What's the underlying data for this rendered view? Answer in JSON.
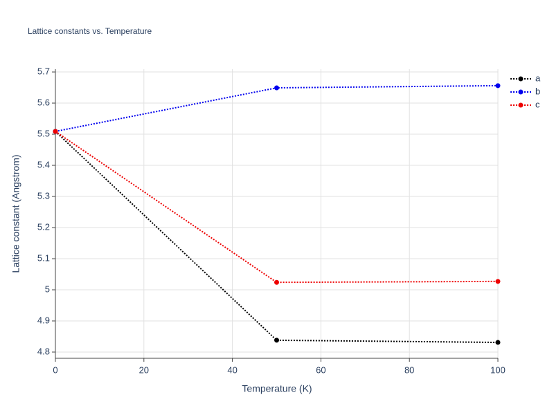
{
  "chart_data": {
    "type": "line",
    "title": "Lattice constants vs. Temperature",
    "x_label": "Temperature (K)",
    "y_label": "Lattice constant (Angstrom)",
    "x": [
      0,
      50,
      100
    ],
    "series": [
      {
        "name": "a",
        "color": "#000000",
        "values": [
          5.509,
          4.838,
          4.831
        ]
      },
      {
        "name": "b",
        "color": "#0000ee",
        "values": [
          5.509,
          5.649,
          5.656
        ]
      },
      {
        "name": "c",
        "color": "#ee0000",
        "values": [
          5.509,
          5.024,
          5.027
        ]
      }
    ],
    "xlim": [
      0,
      100
    ],
    "xticks": [
      0,
      20,
      40,
      60,
      80,
      100
    ],
    "ylim": [
      4.78,
      5.709
    ],
    "yticks": [
      4.8,
      4.9,
      5,
      5.1,
      5.2,
      5.3,
      5.4,
      5.5,
      5.6,
      5.7
    ],
    "grid": true,
    "legend": "right"
  }
}
